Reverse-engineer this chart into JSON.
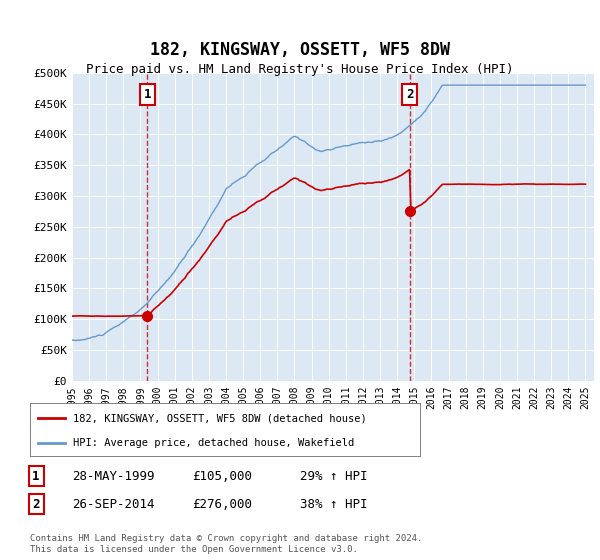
{
  "title": "182, KINGSWAY, OSSETT, WF5 8DW",
  "subtitle": "Price paid vs. HM Land Registry's House Price Index (HPI)",
  "plot_bg_color": "#dce9f5",
  "red_line_color": "#cc0000",
  "blue_line_color": "#6699cc",
  "yticks": [
    0,
    50000,
    100000,
    150000,
    200000,
    250000,
    300000,
    350000,
    400000,
    450000,
    500000
  ],
  "ytick_labels": [
    "£0",
    "£50K",
    "£100K",
    "£150K",
    "£200K",
    "£250K",
    "£300K",
    "£350K",
    "£400K",
    "£450K",
    "£500K"
  ],
  "sale1_date": "28-MAY-1999",
  "sale1_price": 105000,
  "sale1_hpi_pct": "29%",
  "sale1_x": 1999.41,
  "sale2_date": "26-SEP-2014",
  "sale2_price": 276000,
  "sale2_hpi_pct": "38%",
  "sale2_x": 2014.74,
  "legend_line1": "182, KINGSWAY, OSSETT, WF5 8DW (detached house)",
  "legend_line2": "HPI: Average price, detached house, Wakefield",
  "footer1": "Contains HM Land Registry data © Crown copyright and database right 2024.",
  "footer2": "This data is licensed under the Open Government Licence v3.0."
}
